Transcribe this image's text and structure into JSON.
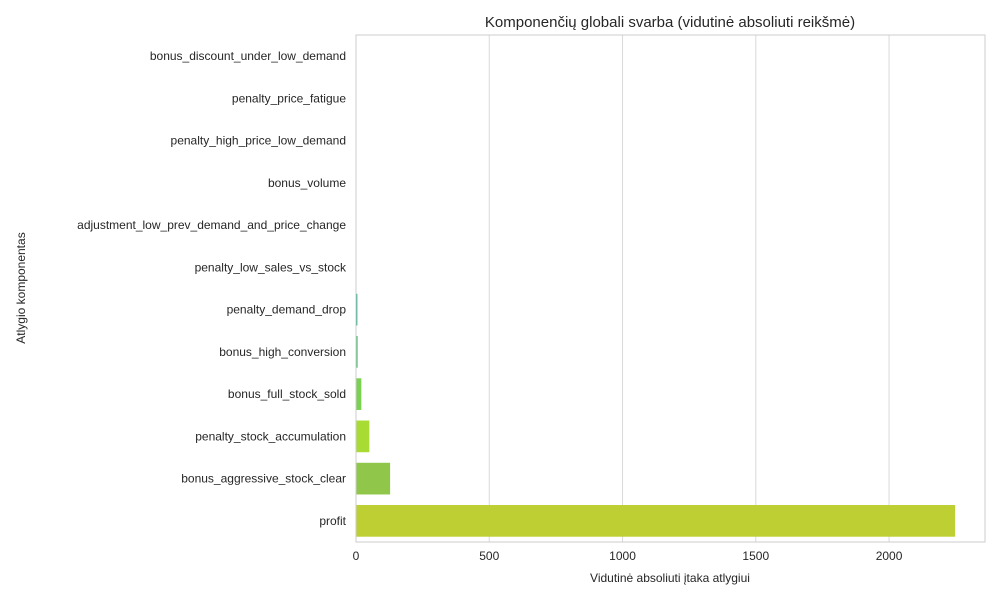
{
  "chart_data": {
    "type": "bar",
    "orientation": "horizontal",
    "title": "Komponenčių globali svarba (vidutinė absoliuti reikšmė)",
    "xlabel": "Vidutinė absoliuti įtaka atlygiui",
    "ylabel": "Atlygio komponentas",
    "categories": [
      "bonus_discount_under_low_demand",
      "penalty_price_fatigue",
      "penalty_high_price_low_demand",
      "bonus_volume",
      "adjustment_low_prev_demand_and_price_change",
      "penalty_low_sales_vs_stock",
      "penalty_demand_drop",
      "bonus_high_conversion",
      "bonus_full_stock_sold",
      "penalty_stock_accumulation",
      "bonus_aggressive_stock_clear",
      "profit"
    ],
    "values": [
      0,
      0,
      0,
      0,
      0.3,
      1.5,
      5,
      6,
      20,
      50,
      128,
      2248
    ],
    "colors": [
      "#440154",
      "#482576",
      "#414487",
      "#35608d",
      "#2a788e",
      "#21908d",
      "#22a884",
      "#43bf71",
      "#7ad151",
      "#a8db34",
      "#90c74a",
      "#bdcf32"
    ],
    "xlim": [
      0,
      2360
    ],
    "xticks": [
      0,
      500,
      1000,
      1500,
      2000
    ],
    "grid": "vertical",
    "legend": "none"
  }
}
